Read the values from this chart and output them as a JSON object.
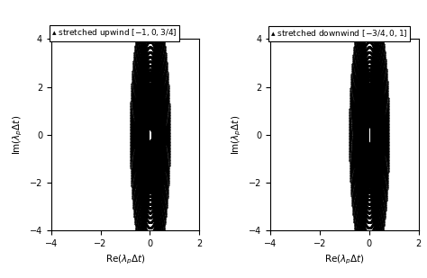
{
  "title1": "stretched upwind $[-1, 0, 3/4]$",
  "title2": "stretched downwind $[-3/4, 0, 1]$",
  "xlabel": "Re($\\lambda_p \\Delta t$)",
  "ylabel": "Im($\\lambda_p \\Delta t$)",
  "xlim": [
    -4,
    2
  ],
  "ylim": [
    -4,
    4
  ],
  "xticks": [
    -4,
    -2,
    0,
    2
  ],
  "yticks": [
    -4,
    -2,
    0,
    2,
    4
  ],
  "color": "black",
  "N_xi": 600,
  "N_r": 40,
  "r_min": 0.1,
  "r_max": 10.0,
  "upwind_coeffs": [
    -1,
    0,
    0.75
  ],
  "downwind_coeffs": [
    -0.75,
    0,
    1
  ]
}
